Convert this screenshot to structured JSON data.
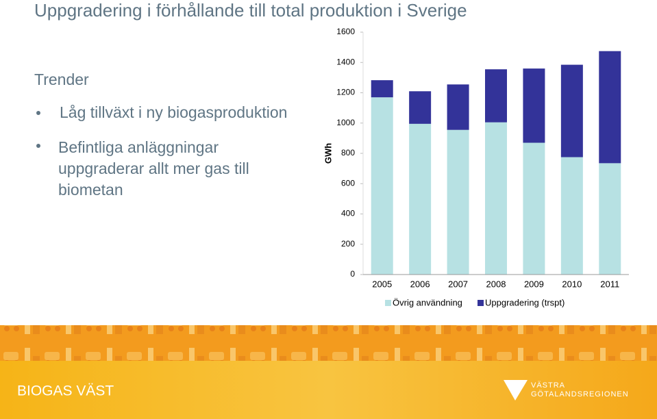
{
  "slide": {
    "title": "Uppgradering i förhållande till total produktion i Sverige",
    "heading": "Trender",
    "bullets": [
      "Låg tillväxt i ny biogasproduktion",
      "Befintliga anläggningar uppgraderar allt mer gas till biometan"
    ]
  },
  "footer": {
    "brand": "BIOGAS VÄST",
    "logo_line1": "VÄSTRA",
    "logo_line2": "GÖTALANDSREGIONEN"
  },
  "chart_data": {
    "type": "stacked_bar",
    "y_label": "GWh",
    "categories": [
      "2005",
      "2006",
      "2007",
      "2008",
      "2009",
      "2010",
      "2011"
    ],
    "series": [
      {
        "name": "Övrig användning",
        "color": "#b7e1e3",
        "values": [
          1170,
          995,
          955,
          1005,
          870,
          775,
          735
        ]
      },
      {
        "name": "Uppgradering (trspt)",
        "color": "#333399",
        "values": [
          113,
          215,
          300,
          350,
          490,
          610,
          740
        ]
      }
    ],
    "ylim": [
      0,
      1600
    ],
    "yticks": [
      0,
      200,
      400,
      600,
      800,
      1000,
      1200,
      1400,
      1600
    ]
  }
}
